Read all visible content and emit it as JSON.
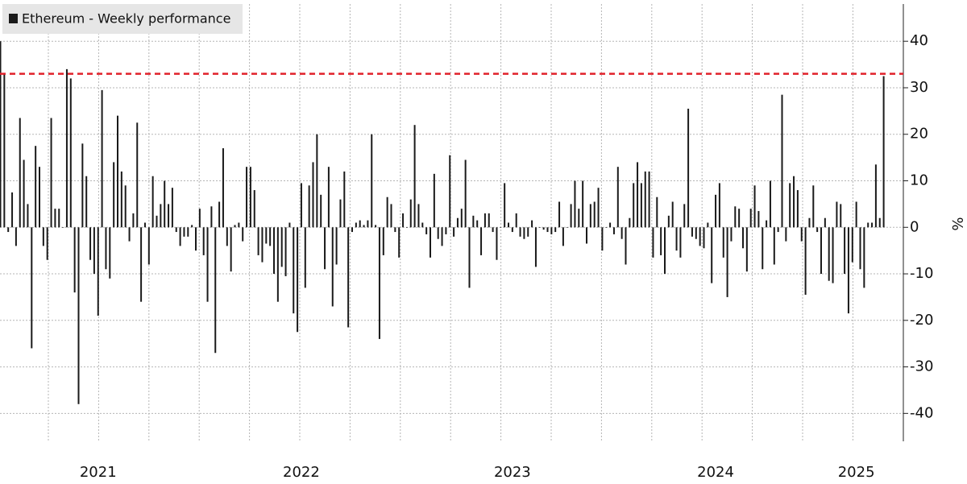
{
  "chart_data": {
    "type": "bar",
    "y_label": "%",
    "categories": [
      null,
      null,
      null,
      null,
      null,
      null,
      null,
      null,
      null,
      null,
      null,
      null,
      null,
      null,
      null,
      null,
      null,
      null,
      null,
      null,
      null,
      null,
      null,
      null,
      null,
      "2021",
      null,
      null,
      null,
      null,
      null,
      null,
      null,
      null,
      null,
      null,
      null,
      null,
      null,
      null,
      null,
      null,
      null,
      null,
      null,
      null,
      null,
      null,
      null,
      null,
      null,
      null,
      null,
      null,
      null,
      null,
      null,
      null,
      null,
      null,
      null,
      null,
      null,
      null,
      null,
      null,
      null,
      null,
      null,
      null,
      null,
      null,
      null,
      null,
      null,
      null,
      null,
      "2022",
      null,
      null,
      null,
      null,
      null,
      null,
      null,
      null,
      null,
      null,
      null,
      null,
      null,
      null,
      null,
      null,
      null,
      null,
      null,
      null,
      null,
      null,
      null,
      null,
      null,
      null,
      null,
      null,
      null,
      null,
      null,
      null,
      null,
      null,
      null,
      null,
      null,
      null,
      null,
      null,
      null,
      null,
      null,
      null,
      null,
      null,
      null,
      null,
      null,
      null,
      null,
      null,
      null,
      "2023",
      null,
      null,
      null,
      null,
      null,
      null,
      null,
      null,
      null,
      null,
      null,
      null,
      null,
      null,
      null,
      null,
      null,
      null,
      null,
      null,
      null,
      null,
      null,
      null,
      null,
      null,
      null,
      null,
      null,
      null,
      null,
      null,
      null,
      null,
      null,
      null,
      null,
      null,
      null,
      null,
      null,
      null,
      null,
      null,
      null,
      null,
      null,
      null,
      null,
      null,
      null,
      "2024",
      null,
      null,
      null,
      null,
      null,
      null,
      null,
      null,
      null,
      null,
      null,
      null,
      null,
      null,
      null,
      null,
      null,
      null,
      null,
      null,
      null,
      null,
      null,
      null,
      null,
      null,
      null,
      null,
      null,
      null,
      null,
      null,
      null,
      null,
      null,
      "2025",
      null,
      null,
      null,
      null,
      null,
      null,
      null
    ],
    "series": [
      {
        "name": "Ethereum - Weekly performance",
        "color": "#1a1a1a",
        "values": [
          40,
          33,
          -1,
          7.5,
          -4,
          23.5,
          14.5,
          5,
          -26,
          17.5,
          13,
          -4,
          -7,
          23.5,
          4,
          4,
          0,
          34,
          32,
          -14,
          -38,
          18,
          11,
          -7,
          -10,
          -19,
          29.5,
          -9,
          -11,
          14,
          24,
          12,
          9,
          -3,
          3,
          22.5,
          -16,
          1,
          -8,
          11,
          2.5,
          5,
          10,
          5,
          8.5,
          -1,
          -4,
          -2,
          -2,
          0.5,
          -5,
          4,
          -6,
          -16,
          4.5,
          -27,
          5.5,
          17,
          -4,
          -9.5,
          0.5,
          1,
          -3,
          13,
          13,
          8,
          -6,
          -7.5,
          -3.5,
          -4,
          -10,
          -16,
          -8.5,
          -10.5,
          1,
          -18.5,
          -22.5,
          9.5,
          -13,
          9,
          14,
          20,
          7,
          -9,
          13,
          -17,
          -8,
          6,
          12,
          -21.5,
          -1,
          1,
          1.5,
          0.5,
          1.5,
          20,
          0.5,
          -24,
          -6,
          6.5,
          5,
          -1,
          -6.5,
          3,
          0,
          6,
          22,
          5,
          1,
          -1.5,
          -6.5,
          11.5,
          -2.5,
          -4,
          -1.5,
          15.5,
          -2,
          2,
          4,
          14.5,
          -13,
          2.5,
          1.5,
          -6,
          3,
          3,
          -1,
          -7,
          0,
          9.5,
          1,
          -1,
          3,
          -2,
          -2.5,
          -2,
          1.5,
          -8.5,
          0,
          -0.5,
          -1,
          -1.5,
          -1,
          5.5,
          -4,
          0,
          5,
          10,
          4,
          10,
          -3.5,
          5,
          5.5,
          8.5,
          -5,
          0,
          1,
          -1.5,
          13,
          -2.5,
          -8,
          2,
          9.5,
          14,
          9.5,
          12,
          12,
          -6.5,
          6.5,
          -6,
          -10,
          2.5,
          5.5,
          -5,
          -6.5,
          5,
          25.5,
          -2,
          -2.5,
          -4,
          -4.5,
          1,
          -12,
          7,
          9.5,
          -6.5,
          -15,
          -3,
          4.5,
          4,
          -4.5,
          -9.5,
          4,
          9,
          3.5,
          -9,
          1.5,
          10,
          -8,
          -1,
          28.5,
          -3,
          9.5,
          11,
          8,
          -3,
          -14.5,
          2,
          9,
          -1,
          -10,
          2,
          -11.5,
          -12,
          5.5,
          5,
          -10,
          -18.5,
          -7.5,
          5.5,
          -9,
          -13,
          1,
          1,
          13.5,
          2,
          32.5
        ]
      }
    ],
    "reference_line": {
      "value": 33,
      "color": "#e0202a"
    },
    "ylim": [
      -46,
      48
    ],
    "yticks": [
      -40,
      -30,
      -20,
      -10,
      0,
      10,
      20,
      30,
      40
    ],
    "grid": true
  }
}
